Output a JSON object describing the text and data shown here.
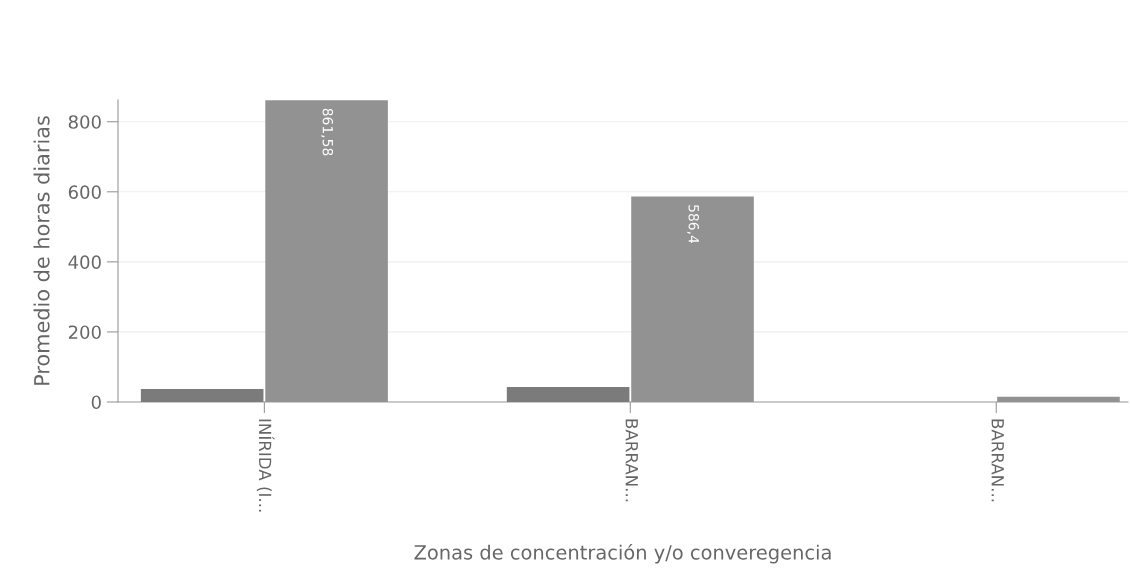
{
  "chart_data": {
    "type": "bar",
    "xlabel": "Zonas de concentración y/o converegencia",
    "ylabel": "Promedio de horas diarias",
    "categories": [
      "INÍRIDA (I...",
      "BARRAN...",
      "BARRAN..."
    ],
    "series": [
      {
        "color": "#7b7b7b",
        "values": [
          37,
          43,
          0
        ]
      },
      {
        "color": "#929292",
        "values": [
          861.58,
          586.4,
          15
        ],
        "value_labels": [
          "861,58",
          "586,4",
          null
        ]
      }
    ],
    "ylim": [
      0,
      862
    ],
    "yticks": [
      0,
      200,
      400,
      600,
      800
    ],
    "grid": "y"
  }
}
